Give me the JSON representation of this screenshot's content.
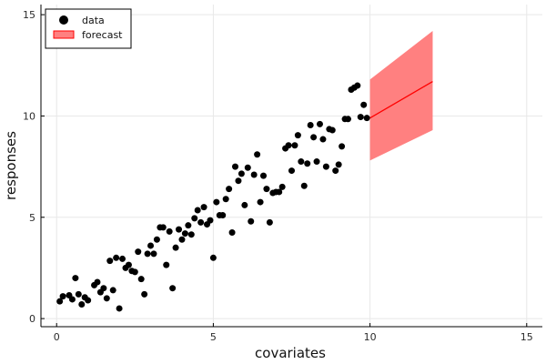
{
  "chart_data": {
    "type": "scatter",
    "xlabel": "covariates",
    "ylabel": "responses",
    "xlim": [
      -0.5,
      15.5
    ],
    "ylim": [
      -0.4,
      15.5
    ],
    "xticks": [
      0,
      5,
      10,
      15
    ],
    "yticks": [
      0,
      5,
      10,
      15
    ],
    "grid": true,
    "legend_position": "top-left",
    "colors": {
      "data": "#000000",
      "forecast_band": "#ff8080",
      "forecast_line": "#ff0000",
      "grid": "#e8e8e8",
      "axis": "#000000"
    },
    "series": [
      {
        "name": "data",
        "type": "scatter",
        "points": [
          [
            0.1,
            0.85
          ],
          [
            0.2,
            1.1
          ],
          [
            0.4,
            1.15
          ],
          [
            0.5,
            0.95
          ],
          [
            0.6,
            2.0
          ],
          [
            0.7,
            1.2
          ],
          [
            0.8,
            0.7
          ],
          [
            0.9,
            1.05
          ],
          [
            1.0,
            0.9
          ],
          [
            1.2,
            1.65
          ],
          [
            1.3,
            1.8
          ],
          [
            1.4,
            1.3
          ],
          [
            1.5,
            1.5
          ],
          [
            1.6,
            1.0
          ],
          [
            1.7,
            2.85
          ],
          [
            1.8,
            1.4
          ],
          [
            1.9,
            3.0
          ],
          [
            2.0,
            0.5
          ],
          [
            2.1,
            2.95
          ],
          [
            2.2,
            2.5
          ],
          [
            2.3,
            2.65
          ],
          [
            2.4,
            2.35
          ],
          [
            2.5,
            2.3
          ],
          [
            2.6,
            3.3
          ],
          [
            2.7,
            1.95
          ],
          [
            2.8,
            1.2
          ],
          [
            2.9,
            3.2
          ],
          [
            3.0,
            3.6
          ],
          [
            3.1,
            3.2
          ],
          [
            3.2,
            3.9
          ],
          [
            3.3,
            4.5
          ],
          [
            3.4,
            4.5
          ],
          [
            3.5,
            2.65
          ],
          [
            3.6,
            4.3
          ],
          [
            3.7,
            1.5
          ],
          [
            3.8,
            3.5
          ],
          [
            3.9,
            4.4
          ],
          [
            4.0,
            3.9
          ],
          [
            4.1,
            4.2
          ],
          [
            4.2,
            4.6
          ],
          [
            4.3,
            4.15
          ],
          [
            4.4,
            4.95
          ],
          [
            4.5,
            5.35
          ],
          [
            4.6,
            4.75
          ],
          [
            4.7,
            5.5
          ],
          [
            4.8,
            4.65
          ],
          [
            4.9,
            4.85
          ],
          [
            5.0,
            3.0
          ],
          [
            5.1,
            5.75
          ],
          [
            5.2,
            5.1
          ],
          [
            5.3,
            5.1
          ],
          [
            5.4,
            5.9
          ],
          [
            5.5,
            6.4
          ],
          [
            5.6,
            4.25
          ],
          [
            5.7,
            7.5
          ],
          [
            5.8,
            6.8
          ],
          [
            5.9,
            7.15
          ],
          [
            6.0,
            5.6
          ],
          [
            6.1,
            7.45
          ],
          [
            6.2,
            4.8
          ],
          [
            6.3,
            7.1
          ],
          [
            6.4,
            8.1
          ],
          [
            6.5,
            5.75
          ],
          [
            6.6,
            7.05
          ],
          [
            6.7,
            6.4
          ],
          [
            6.8,
            4.75
          ],
          [
            6.9,
            6.2
          ],
          [
            7.0,
            6.25
          ],
          [
            7.1,
            6.25
          ],
          [
            7.2,
            6.5
          ],
          [
            7.3,
            8.4
          ],
          [
            7.4,
            8.55
          ],
          [
            7.5,
            7.3
          ],
          [
            7.6,
            8.55
          ],
          [
            7.7,
            9.05
          ],
          [
            7.8,
            7.75
          ],
          [
            7.9,
            6.55
          ],
          [
            8.0,
            7.65
          ],
          [
            8.1,
            9.55
          ],
          [
            8.2,
            8.95
          ],
          [
            8.3,
            7.75
          ],
          [
            8.4,
            9.6
          ],
          [
            8.5,
            8.85
          ],
          [
            8.6,
            7.5
          ],
          [
            8.7,
            9.35
          ],
          [
            8.8,
            9.3
          ],
          [
            8.9,
            7.3
          ],
          [
            9.0,
            7.6
          ],
          [
            9.1,
            8.5
          ],
          [
            9.2,
            9.85
          ],
          [
            9.3,
            9.85
          ],
          [
            9.4,
            11.3
          ],
          [
            9.5,
            11.4
          ],
          [
            9.6,
            11.5
          ],
          [
            9.7,
            9.95
          ],
          [
            9.8,
            10.55
          ],
          [
            9.9,
            9.9
          ]
        ]
      },
      {
        "name": "forecast",
        "type": "area",
        "x": [
          10,
          12
        ],
        "center": [
          9.9,
          11.7
        ],
        "lower": [
          7.8,
          9.3
        ],
        "upper": [
          11.8,
          14.2
        ]
      }
    ]
  }
}
